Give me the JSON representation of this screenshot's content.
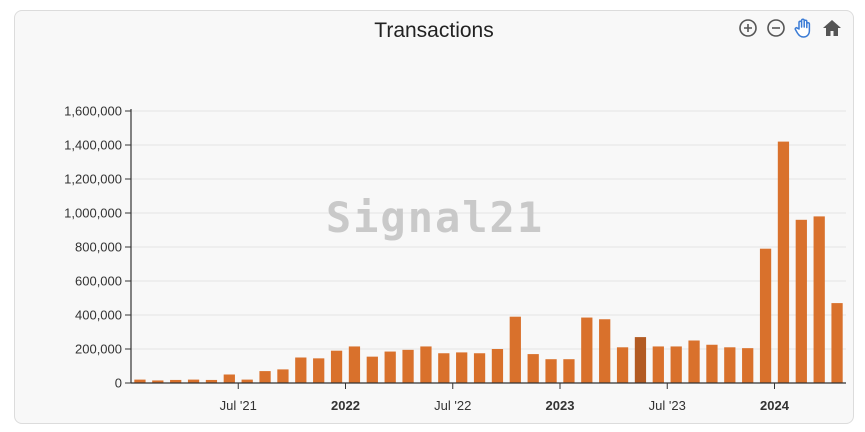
{
  "colors": {
    "bar": "#d9712c",
    "bar_highlight": "#b25a22",
    "grid": "#e3e3e3",
    "axis": "#333333"
  },
  "toolbar": {
    "icons": [
      "zoom-in-icon",
      "zoom-out-icon",
      "pan-hand-icon",
      "home-icon"
    ]
  },
  "watermark": "Signal21",
  "chart_data": {
    "type": "bar",
    "title": "Transactions",
    "xlabel": "",
    "ylabel": "",
    "ylim": [
      0,
      1600000
    ],
    "yticks": [
      0,
      200000,
      400000,
      600000,
      800000,
      1000000,
      1200000,
      1400000,
      1600000
    ],
    "ytick_labels": [
      "0",
      "200,000",
      "400,000",
      "600,000",
      "800,000",
      "1,000,000",
      "1,200,000",
      "1,400,000",
      "1,600,000"
    ],
    "grid": true,
    "legend": "none",
    "categories": [
      "2021-01",
      "2021-02",
      "2021-03",
      "2021-04",
      "2021-05",
      "2021-06",
      "2021-07",
      "2021-08",
      "2021-09",
      "2021-10",
      "2021-11",
      "2021-12",
      "2022-01",
      "2022-02",
      "2022-03",
      "2022-04",
      "2022-05",
      "2022-06",
      "2022-07",
      "2022-08",
      "2022-09",
      "2022-10",
      "2022-11",
      "2022-12",
      "2023-01",
      "2023-02",
      "2023-03",
      "2023-04",
      "2023-05",
      "2023-06",
      "2023-07",
      "2023-08",
      "2023-09",
      "2023-10",
      "2023-11",
      "2023-12",
      "2024-01",
      "2024-02",
      "2024-03",
      "2024-04"
    ],
    "values": [
      20000,
      15000,
      18000,
      20000,
      18000,
      50000,
      20000,
      70000,
      80000,
      150000,
      145000,
      190000,
      215000,
      155000,
      185000,
      195000,
      215000,
      175000,
      180000,
      175000,
      200000,
      390000,
      170000,
      140000,
      140000,
      385000,
      375000,
      210000,
      270000,
      215000,
      215000,
      250000,
      225000,
      210000,
      205000,
      790000,
      1420000,
      960000,
      980000,
      470000
    ],
    "highlight_category": "2023-05",
    "xtick_labels": [
      {
        "category": "2021-07",
        "label": "Jul '21",
        "bold": false
      },
      {
        "category": "2022-01",
        "label": "2022",
        "bold": true
      },
      {
        "category": "2022-07",
        "label": "Jul '22",
        "bold": false
      },
      {
        "category": "2023-01",
        "label": "2023",
        "bold": true
      },
      {
        "category": "2023-07",
        "label": "Jul '23",
        "bold": false
      },
      {
        "category": "2024-01",
        "label": "2024",
        "bold": true
      }
    ]
  }
}
